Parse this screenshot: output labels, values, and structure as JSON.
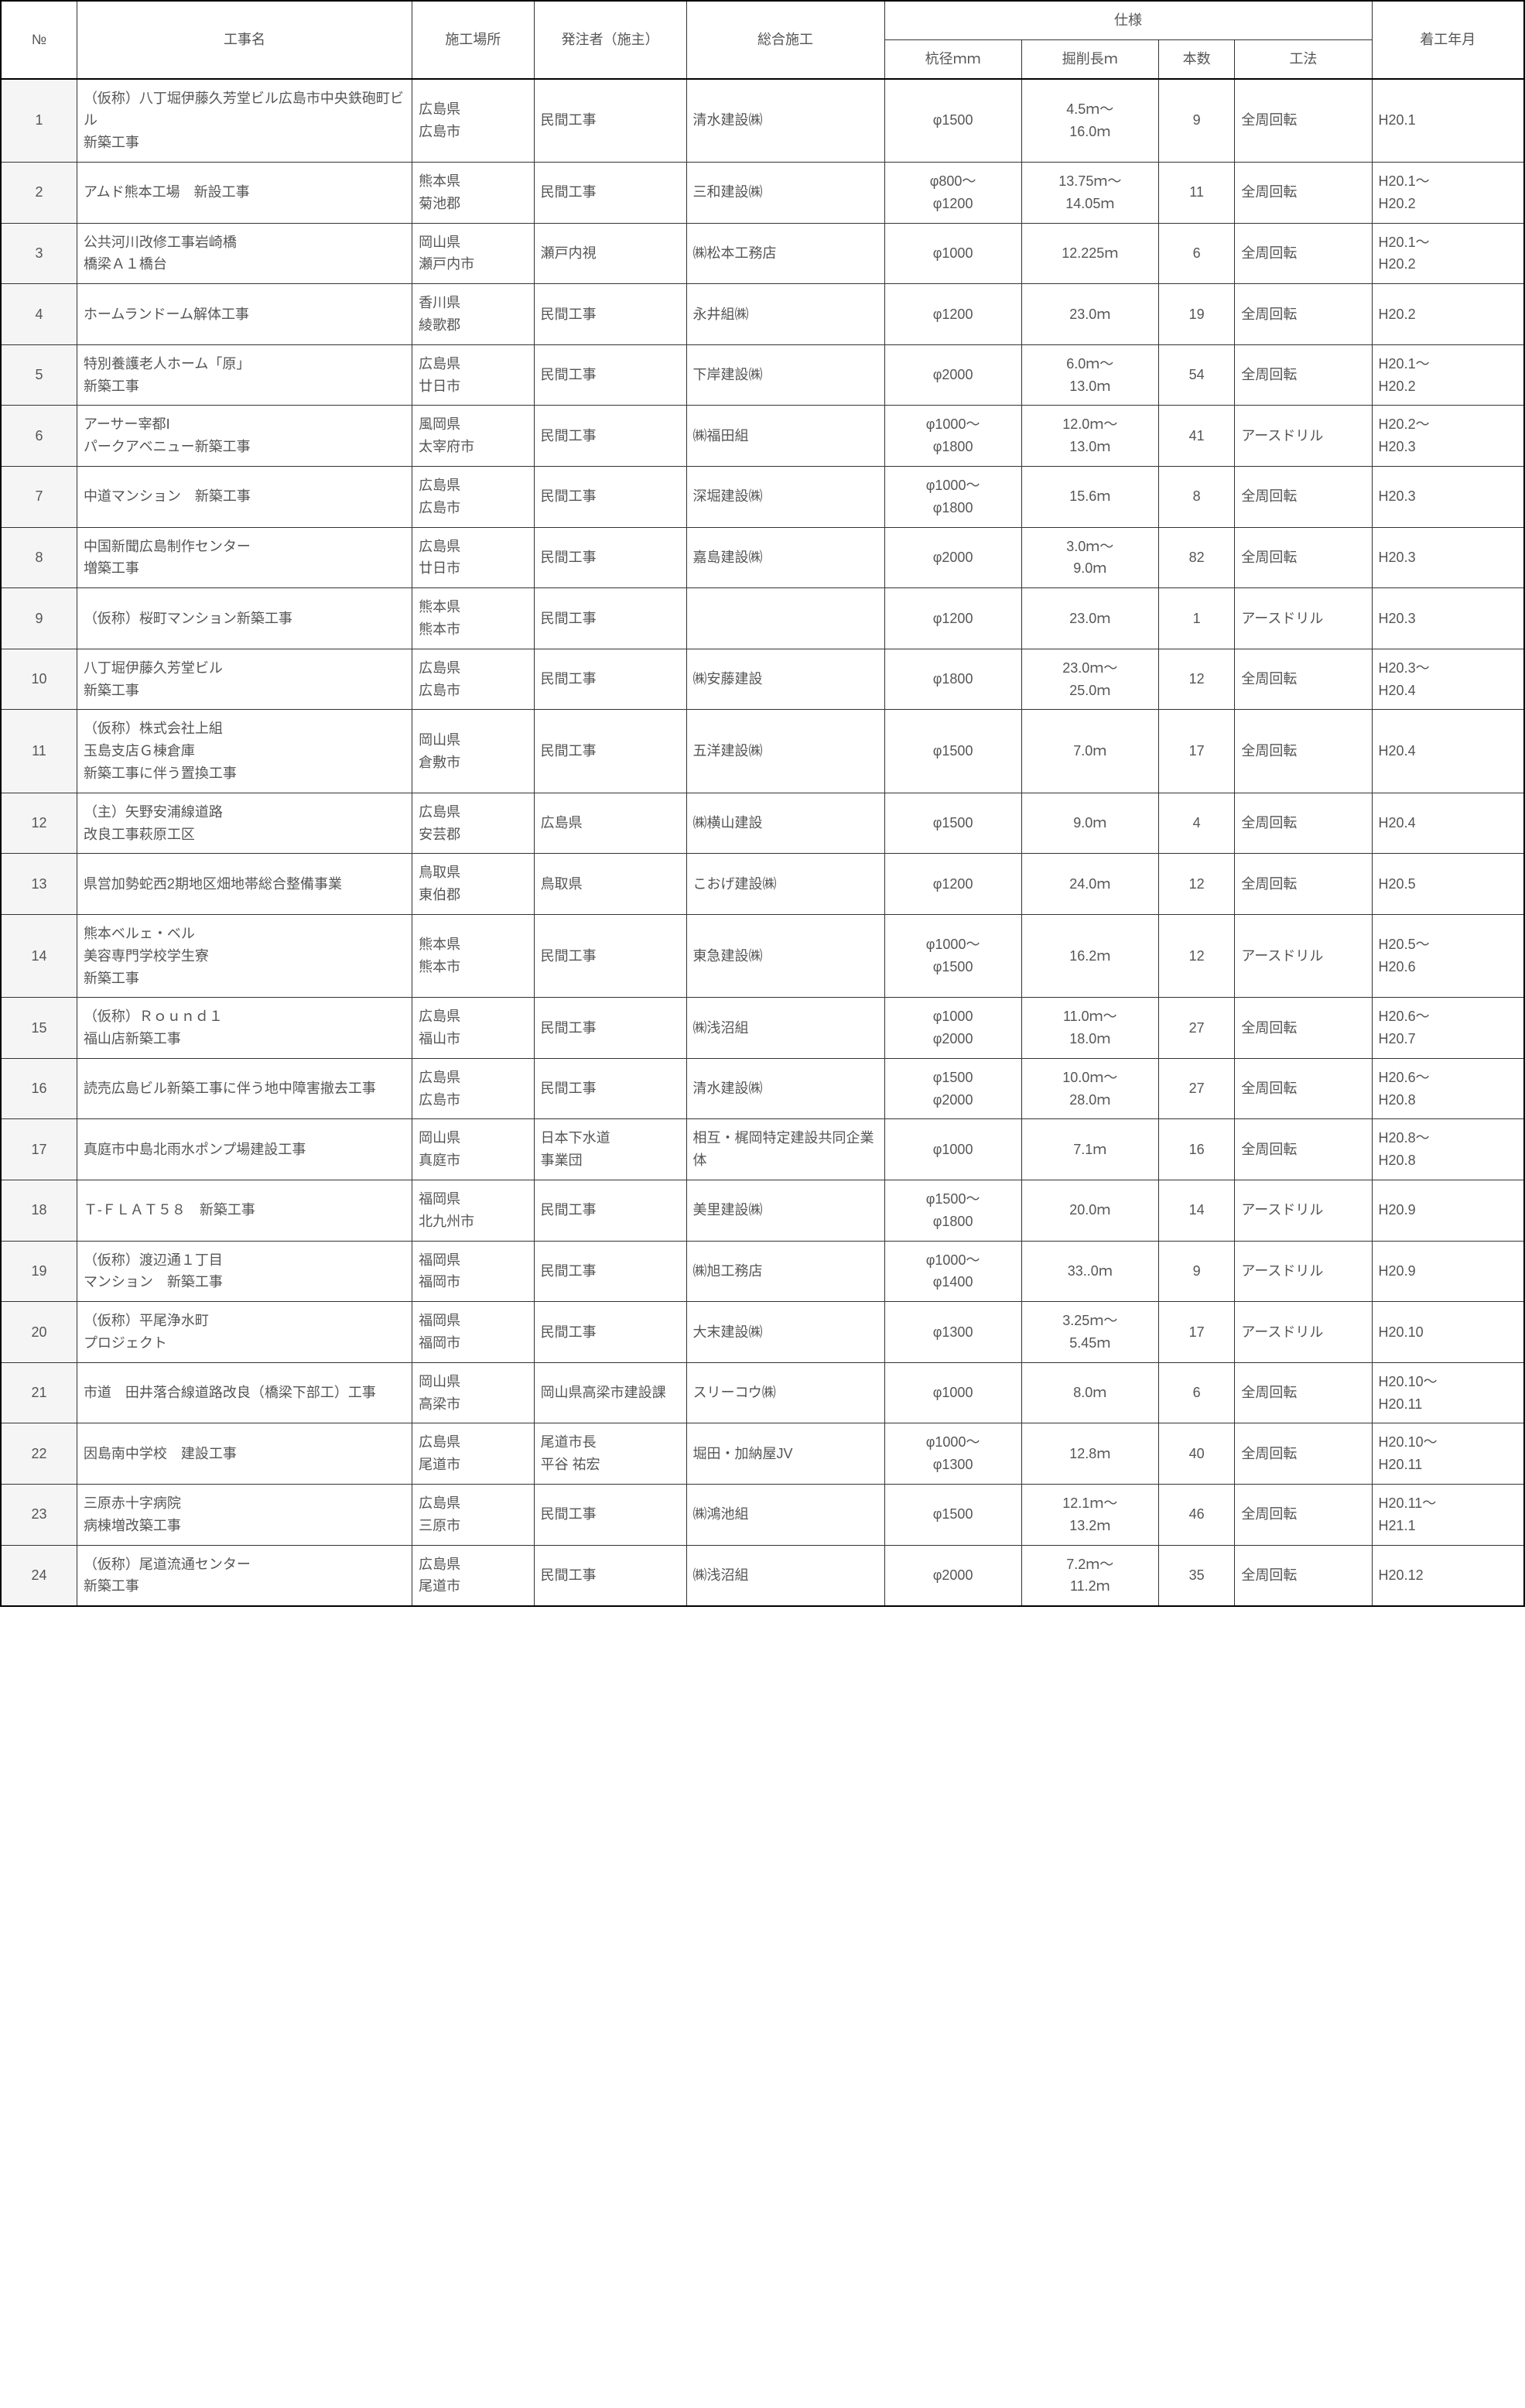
{
  "headers": {
    "no": "№",
    "name": "工事名",
    "location": "施工場所",
    "client": "発注者（施主）",
    "contractor": "総合施工",
    "spec": "仕様",
    "diameter": "杭径ｍｍ",
    "length": "掘削長ｍ",
    "qty": "本数",
    "method": "工法",
    "date": "着工年月"
  },
  "rows": [
    {
      "no": "1",
      "name": "（仮称）八丁堀伊藤久芳堂ビル広島市中央鉄砲町ビル\n新築工事",
      "location": "広島県\n広島市",
      "client": "民間工事",
      "contractor": "清水建設㈱",
      "diameter": "φ1500",
      "length": "4.5ｍ～\n16.0ｍ",
      "qty": "9",
      "method": "全周回転",
      "date": "H20.1"
    },
    {
      "no": "2",
      "name": "アムド熊本工場　新設工事",
      "location": "熊本県\n菊池郡",
      "client": "民間工事",
      "contractor": "三和建設㈱",
      "diameter": "φ800～\nφ1200",
      "length": "13.75ｍ～\n14.05ｍ",
      "qty": "11",
      "method": "全周回転",
      "date": "H20.1～\nH20.2"
    },
    {
      "no": "3",
      "name": "公共河川改修工事岩崎橋\n橋梁Ａ１橋台",
      "location": "岡山県\n瀬戸内市",
      "client": "瀬戸内視",
      "contractor": "㈱松本工務店",
      "diameter": "φ1000",
      "length": "12.225ｍ",
      "qty": "6",
      "method": "全周回転",
      "date": "H20.1～\nH20.2"
    },
    {
      "no": "4",
      "name": "ホームランドーム解体工事",
      "location": "香川県\n綾歌郡",
      "client": "民間工事",
      "contractor": "永井組㈱",
      "diameter": "φ1200",
      "length": "23.0ｍ",
      "qty": "19",
      "method": "全周回転",
      "date": "H20.2"
    },
    {
      "no": "5",
      "name": "特別養護老人ホーム「原」\n新築工事",
      "location": "広島県\n廿日市",
      "client": "民間工事",
      "contractor": "下岸建設㈱",
      "diameter": "φ2000",
      "length": "6.0ｍ～\n13.0ｍ",
      "qty": "54",
      "method": "全周回転",
      "date": "H20.1～\nH20.2"
    },
    {
      "no": "6",
      "name": "アーサー宰都Ⅰ\nパークアベニュー新築工事",
      "location": "風岡県\n太宰府市",
      "client": "民間工事",
      "contractor": "㈱福田組",
      "diameter": "φ1000～\nφ1800",
      "length": "12.0ｍ～\n13.0ｍ",
      "qty": "41",
      "method": "アースドリル",
      "date": "H20.2～\nH20.3"
    },
    {
      "no": "7",
      "name": "中道マンション　新築工事",
      "location": "広島県\n広島市",
      "client": "民間工事",
      "contractor": "深堀建設㈱",
      "diameter": "φ1000～\nφ1800",
      "length": "15.6ｍ",
      "qty": "8",
      "method": "全周回転",
      "date": "H20.3"
    },
    {
      "no": "8",
      "name": "中国新聞広島制作センター\n増築工事",
      "location": "広島県\n廿日市",
      "client": "民間工事",
      "contractor": "嘉島建設㈱",
      "diameter": "φ2000",
      "length": "3.0ｍ～\n9.0ｍ",
      "qty": "82",
      "method": "全周回転",
      "date": "H20.3"
    },
    {
      "no": "9",
      "name": "（仮称）桜町マンション新築工事",
      "location": "熊本県\n熊本市",
      "client": "民間工事",
      "contractor": "",
      "diameter": "φ1200",
      "length": "23.0ｍ",
      "qty": "1",
      "method": "アースドリル",
      "date": "H20.3"
    },
    {
      "no": "10",
      "name": "八丁堀伊藤久芳堂ビル\n新築工事",
      "location": "広島県\n広島市",
      "client": "民間工事",
      "contractor": "㈱安藤建設",
      "diameter": "φ1800",
      "length": "23.0ｍ～\n25.0ｍ",
      "qty": "12",
      "method": "全周回転",
      "date": "H20.3～\nH20.4"
    },
    {
      "no": "11",
      "name": "（仮称）株式会社上組\n玉島支店Ｇ棟倉庫\n新築工事に伴う置換工事",
      "location": "岡山県\n倉敷市",
      "client": "民間工事",
      "contractor": "五洋建設㈱",
      "diameter": "φ1500",
      "length": "7.0ｍ",
      "qty": "17",
      "method": "全周回転",
      "date": "H20.4"
    },
    {
      "no": "12",
      "name": "（主）矢野安浦線道路\n改良工事萩原工区",
      "location": "広島県\n安芸郡",
      "client": "広島県",
      "contractor": "㈱横山建設",
      "diameter": "φ1500",
      "length": "9.0ｍ",
      "qty": "4",
      "method": "全周回転",
      "date": "H20.4"
    },
    {
      "no": "13",
      "name": "県営加勢蛇西2期地区畑地帯総合整備事業",
      "location": "鳥取県\n東伯郡",
      "client": "鳥取県",
      "contractor": "こおげ建設㈱",
      "diameter": "φ1200",
      "length": "24.0ｍ",
      "qty": "12",
      "method": "全周回転",
      "date": "H20.5"
    },
    {
      "no": "14",
      "name": "熊本ベルェ・ベル\n美容専門学校学生寮\n新築工事",
      "location": "熊本県\n熊本市",
      "client": "民間工事",
      "contractor": "東急建設㈱",
      "diameter": "φ1000～\nφ1500",
      "length": "16.2ｍ",
      "qty": "12",
      "method": "アースドリル",
      "date": "H20.5～\nH20.6"
    },
    {
      "no": "15",
      "name": "（仮称）Ｒｏｕｎｄ１\n福山店新築工事",
      "location": "広島県\n福山市",
      "client": "民間工事",
      "contractor": "㈱浅沼組",
      "diameter": "φ1000\nφ2000",
      "length": "11.0ｍ～\n18.0ｍ",
      "qty": "27",
      "method": "全周回転",
      "date": "H20.6～\nH20.7"
    },
    {
      "no": "16",
      "name": "読売広島ビル新築工事に伴う地中障害撤去工事",
      "location": "広島県\n広島市",
      "client": "民間工事",
      "contractor": "清水建設㈱",
      "diameter": "φ1500\nφ2000",
      "length": "10.0ｍ～\n28.0ｍ",
      "qty": "27",
      "method": "全周回転",
      "date": "H20.6～\nH20.8"
    },
    {
      "no": "17",
      "name": "真庭市中島北雨水ポンプ場建設工事",
      "location": "岡山県\n真庭市",
      "client": "日本下水道\n事業団",
      "contractor": "相互・梶岡特定建設共同企業体",
      "diameter": "φ1000",
      "length": "7.1ｍ",
      "qty": "16",
      "method": "全周回転",
      "date": "H20.8～\nH20.8"
    },
    {
      "no": "18",
      "name": "Ｔ‐ＦＬＡＴ５８　新築工事",
      "location": "福岡県\n北九州市",
      "client": "民間工事",
      "contractor": "美里建設㈱",
      "diameter": "φ1500～\nφ1800",
      "length": "20.0ｍ",
      "qty": "14",
      "method": "アースドリル",
      "date": "H20.9"
    },
    {
      "no": "19",
      "name": "（仮称）渡辺通１丁目\nマンション　新築工事",
      "location": "福岡県\n福岡市",
      "client": "民間工事",
      "contractor": "㈱旭工務店",
      "diameter": "φ1000～\nφ1400",
      "length": "33..0ｍ",
      "qty": "9",
      "method": "アースドリル",
      "date": "H20.9"
    },
    {
      "no": "20",
      "name": "（仮称）平尾浄水町\nプロジェクト",
      "location": "福岡県\n福岡市",
      "client": "民間工事",
      "contractor": "大末建設㈱",
      "diameter": "φ1300",
      "length": "3.25ｍ～\n5.45ｍ",
      "qty": "17",
      "method": "アースドリル",
      "date": "H20.10"
    },
    {
      "no": "21",
      "name": "市道　田井落合線道路改良（橋梁下部工）工事",
      "location": "岡山県\n高梁市",
      "client": "岡山県高梁市建設課",
      "contractor": "スリーコウ㈱",
      "diameter": "φ1000",
      "length": "8.0ｍ",
      "qty": "6",
      "method": "全周回転",
      "date": "H20.10～\nH20.11"
    },
    {
      "no": "22",
      "name": "因島南中学校　建設工事",
      "location": "広島県\n尾道市",
      "client": "尾道市長\n平谷 祐宏",
      "contractor": "堀田・加納屋JV",
      "diameter": "φ1000～\nφ1300",
      "length": "12.8ｍ",
      "qty": "40",
      "method": "全周回転",
      "date": "H20.10～\nH20.11"
    },
    {
      "no": "23",
      "name": "三原赤十字病院\n病棟増改築工事",
      "location": "広島県\n三原市",
      "client": "民間工事",
      "contractor": "㈱鴻池組",
      "diameter": "φ1500",
      "length": "12.1ｍ～\n13.2ｍ",
      "qty": "46",
      "method": "全周回転",
      "date": "H20.11～\nH21.1"
    },
    {
      "no": "24",
      "name": "（仮称）尾道流通センター\n新築工事",
      "location": "広島県\n尾道市",
      "client": "民間工事",
      "contractor": "㈱浅沼組",
      "diameter": "φ2000",
      "length": "7.2ｍ～\n11.2ｍ",
      "qty": "35",
      "method": "全周回転",
      "date": "H20.12"
    }
  ],
  "style": {
    "border_color": "#333333",
    "outer_border_color": "#000000",
    "text_color": "#555555",
    "no_bg": "#f5f5f5",
    "font_size": 18
  }
}
